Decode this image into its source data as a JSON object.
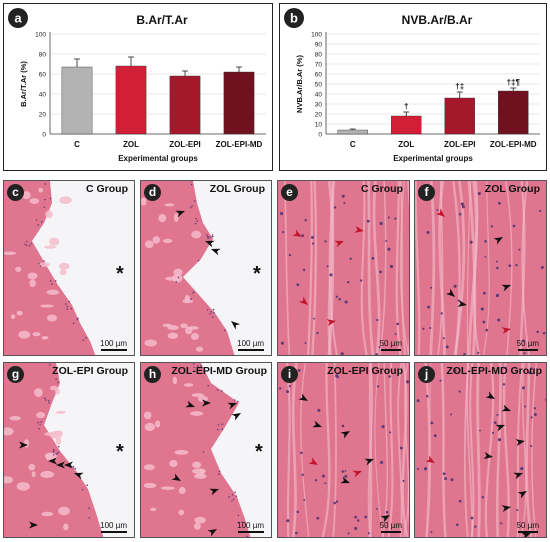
{
  "chart_data": [
    {
      "type": "bar",
      "panel": "a",
      "title": "B.Ar/T.Ar",
      "xlabel": "Experimental groups",
      "ylabel": "B.Ar/T.Ar (%)",
      "ylim": [
        0,
        100
      ],
      "yticks": [
        "0",
        "20",
        "40",
        "60",
        "80",
        "100"
      ],
      "categories": [
        "C",
        "ZOL",
        "ZOL-EPI",
        "ZOL-EPI-MD"
      ],
      "values": [
        67,
        68,
        58,
        62
      ],
      "errors": [
        8,
        9,
        5,
        5
      ],
      "significance": [
        "",
        "",
        "",
        ""
      ],
      "colors": [
        "#b3b3b3",
        "#d21f35",
        "#a5182c",
        "#70111f"
      ],
      "grid": true
    },
    {
      "type": "bar",
      "panel": "b",
      "title": "NVB.Ar/B.Ar",
      "xlabel": "Experimental groups",
      "ylabel": "NVB.Ar/B.Ar (%)",
      "ylim": [
        0,
        100
      ],
      "yticks": [
        "0",
        "10",
        "20",
        "30",
        "40",
        "50",
        "60",
        "70",
        "80",
        "90",
        "100"
      ],
      "categories": [
        "C",
        "ZOL",
        "ZOL-EPI",
        "ZOL-EPI-MD"
      ],
      "values": [
        4,
        18,
        36,
        43
      ],
      "errors": [
        1,
        4,
        6,
        3
      ],
      "significance": [
        "",
        "†",
        "†‡",
        "†‡¶"
      ],
      "colors": [
        "#b3b3b3",
        "#d21f35",
        "#a5182c",
        "#70111f"
      ],
      "grid": true
    }
  ],
  "panels": [
    {
      "letter": "c",
      "title": "C Group",
      "scale": "100 µm",
      "asterisk": "*"
    },
    {
      "letter": "d",
      "title": "ZOL Group",
      "scale": "100 µm",
      "asterisk": "*"
    },
    {
      "letter": "e",
      "title": "C Group",
      "scale": "50 µm",
      "asterisk": ""
    },
    {
      "letter": "f",
      "title": "ZOL Group",
      "scale": "50 µm",
      "asterisk": ""
    },
    {
      "letter": "g",
      "title": "ZOL-EPI Group",
      "scale": "100 µm",
      "asterisk": "*"
    },
    {
      "letter": "h",
      "title": "ZOL-EPI-MD Group",
      "scale": "100 µm",
      "asterisk": "*"
    },
    {
      "letter": "i",
      "title": "ZOL-EPI Group",
      "scale": "50 µm",
      "asterisk": ""
    },
    {
      "letter": "j",
      "title": "ZOL-EPI-MD Group",
      "scale": "50 µm",
      "asterisk": ""
    }
  ],
  "colors": {
    "tissue": "#e0758f",
    "tissue_light": "#f4bccb",
    "background_slide": "#f5f5f8",
    "arrow_red": "#c0152c",
    "arrow_black": "#111111"
  }
}
